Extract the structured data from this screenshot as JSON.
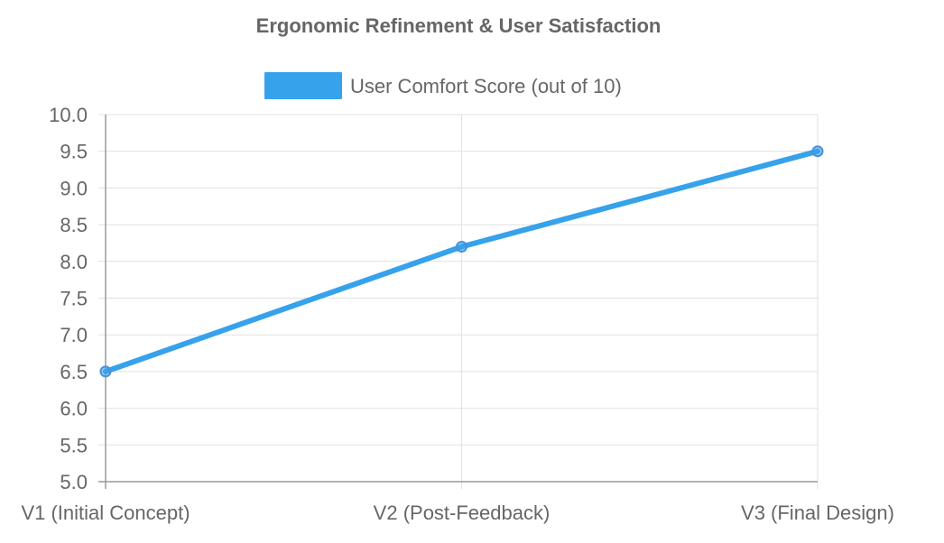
{
  "chart_data": {
    "type": "line",
    "title": "Ergonomic Refinement & User Satisfaction",
    "categories": [
      "V1 (Initial Concept)",
      "V2 (Post-Feedback)",
      "V3 (Final Design)"
    ],
    "series": [
      {
        "name": "User Comfort Score (out of 10)",
        "values": [
          6.5,
          8.2,
          9.5
        ],
        "color": "#36a2eb"
      }
    ],
    "ylim": [
      5.0,
      10.0
    ],
    "yticks": [
      "5.0",
      "5.5",
      "6.0",
      "6.5",
      "7.0",
      "7.5",
      "8.0",
      "8.5",
      "9.0",
      "9.5",
      "10.0"
    ],
    "grid": true,
    "legend_position": "top"
  }
}
